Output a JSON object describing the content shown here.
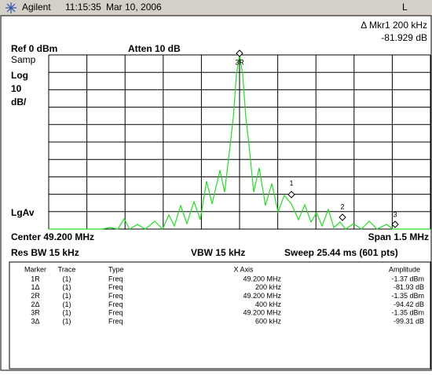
{
  "header": {
    "brand": "Agilent",
    "time": "11:15:35",
    "date": "Mar 10, 2006",
    "mode": "L"
  },
  "display": {
    "marker_readout": "Δ Mkr1  200 kHz",
    "marker_value": "-81.929 dB",
    "ref": "Ref 0 dBm",
    "atten": "Atten 10 dB",
    "left_labels": [
      "Samp",
      "Log",
      "10",
      "dB/",
      "LgAv"
    ],
    "marker_labels": [
      "3R",
      "1",
      "2",
      "3"
    ],
    "center": "Center 49.200 MHz",
    "span": "Span 1.5 MHz",
    "res_bw": "Res BW 15 kHz",
    "vbw": "VBW 15 kHz",
    "sweep": "Sweep 25.44 ms (601 pts)"
  },
  "table": {
    "headers": [
      "Marker",
      "Trace",
      "Type",
      "X Axis",
      "Amplitude"
    ],
    "rows": [
      [
        "1R",
        "(1)",
        "Freq",
        "49.200 MHz",
        "-1.37 dBm"
      ],
      [
        "1Δ",
        "(1)",
        "Freq",
        "200 kHz",
        "-81.93 dB"
      ],
      [
        "2R",
        "(1)",
        "Freq",
        "49.200 MHz",
        "-1.35 dBm"
      ],
      [
        "2Δ",
        "(1)",
        "Freq",
        "400 kHz",
        "-94.42 dB"
      ],
      [
        "3R",
        "(1)",
        "Freq",
        "49.200 MHz",
        "-1.35 dBm"
      ],
      [
        "3Δ",
        "(1)",
        "Freq",
        "600 kHz",
        "-99.31 dB"
      ]
    ]
  }
}
